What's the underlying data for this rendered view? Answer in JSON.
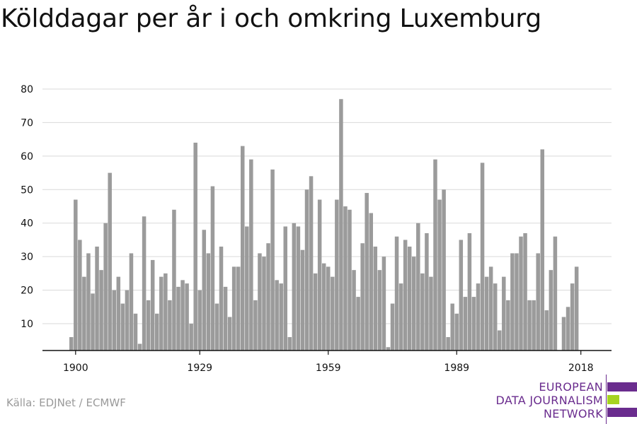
{
  "title": "Kölddagar per år i och omkring Luxemburg",
  "source": "Källa: EDJNet / ECMWF",
  "logo": {
    "lines": [
      "EUROPEAN",
      "DATA JOURNALISM",
      "NETWORK"
    ],
    "colors": {
      "purple": "#6a2c8e",
      "green": "#a6d320"
    }
  },
  "colors": {
    "bar": "#9b9b9b",
    "grid": "#d9d9d9",
    "axis": "#111111"
  },
  "chart_data": {
    "type": "bar",
    "title": "Kölddagar per år i och omkring Luxemburg",
    "xlabel": "",
    "ylabel": "",
    "x_start": 1899,
    "x_end": 2018,
    "x_ticks": [
      1900,
      1929,
      1959,
      1989,
      2018
    ],
    "y_ticks": [
      10,
      20,
      30,
      40,
      50,
      60,
      70,
      80
    ],
    "ylim": [
      2,
      80
    ],
    "grid": true,
    "values": [
      6,
      47,
      35,
      24,
      31,
      19,
      33,
      26,
      40,
      55,
      20,
      24,
      16,
      20,
      31,
      13,
      4,
      42,
      17,
      29,
      13,
      24,
      25,
      17,
      44,
      21,
      23,
      22,
      10,
      64,
      20,
      38,
      31,
      51,
      16,
      33,
      21,
      12,
      27,
      27,
      63,
      39,
      59,
      17,
      31,
      30,
      34,
      56,
      23,
      22,
      39,
      6,
      40,
      39,
      32,
      50,
      54,
      25,
      47,
      28,
      27,
      24,
      47,
      77,
      45,
      44,
      26,
      18,
      34,
      49,
      43,
      33,
      26,
      30,
      3,
      16,
      36,
      22,
      35,
      33,
      30,
      40,
      25,
      37,
      24,
      59,
      47,
      50,
      6,
      16,
      13,
      35,
      18,
      37,
      18,
      22,
      58,
      24,
      27,
      22,
      8,
      24,
      17,
      31,
      31,
      36,
      37,
      17,
      17,
      31,
      62,
      14,
      26,
      36,
      0,
      12,
      15,
      22,
      27,
      0
    ]
  }
}
